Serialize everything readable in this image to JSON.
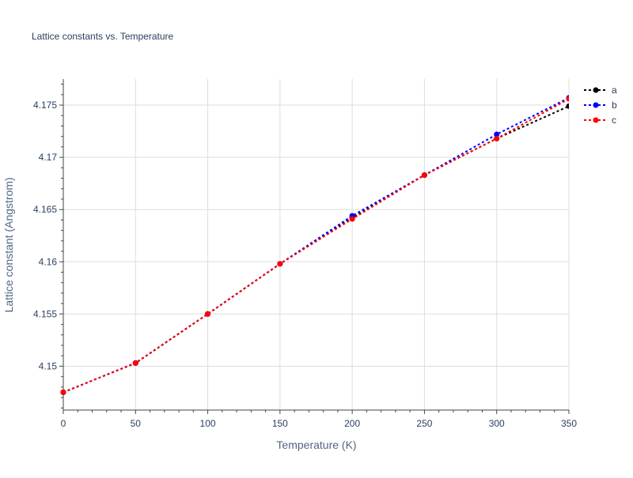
{
  "chart_data": {
    "type": "line",
    "title": "Lattice constants vs. Temperature",
    "xlabel": "Temperature (K)",
    "ylabel": "Lattice constant (Angstrom)",
    "xlim": [
      0,
      350
    ],
    "ylim": [
      4.1458,
      4.1775
    ],
    "x_ticks": [
      0,
      50,
      100,
      150,
      200,
      250,
      300,
      350
    ],
    "y_ticks": [
      4.15,
      4.155,
      4.16,
      4.165,
      4.17,
      4.175
    ],
    "y_tick_labels": [
      "4.15",
      "4.155",
      "4.16",
      "4.165",
      "4.17",
      "4.175"
    ],
    "grid": true,
    "legend_position": "right",
    "series": [
      {
        "name": "a",
        "color": "#000000",
        "x": [
          0,
          50,
          100,
          150,
          200,
          250,
          300,
          350
        ],
        "y": [
          4.1475,
          4.1503,
          4.155,
          4.1598,
          4.1642,
          4.1683,
          4.1718,
          4.1749
        ]
      },
      {
        "name": "b",
        "color": "#0000ff",
        "x": [
          0,
          50,
          100,
          150,
          200,
          250,
          300,
          350
        ],
        "y": [
          4.1475,
          4.1503,
          4.155,
          4.1598,
          4.1644,
          4.1683,
          4.1722,
          4.1757
        ]
      },
      {
        "name": "c",
        "color": "#ff0000",
        "x": [
          0,
          50,
          100,
          150,
          200,
          250,
          300,
          350
        ],
        "y": [
          4.1475,
          4.1503,
          4.155,
          4.1598,
          4.1641,
          4.1683,
          4.1718,
          4.1756
        ]
      }
    ]
  }
}
